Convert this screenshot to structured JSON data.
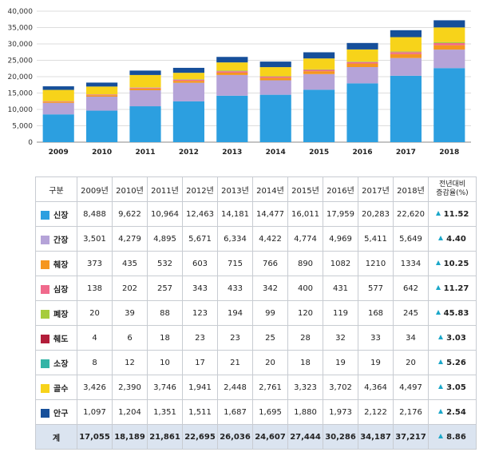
{
  "chart_data": {
    "type": "bar",
    "stacked": true,
    "categories": [
      "2009",
      "2010",
      "2011",
      "2012",
      "2013",
      "2014",
      "2015",
      "2016",
      "2017",
      "2018"
    ],
    "ylim": [
      0,
      40000
    ],
    "yticks": [
      "0",
      "5,000",
      "10,000",
      "15,000",
      "20,000",
      "25,000",
      "30,000",
      "35,000",
      "40,000"
    ],
    "grid": true,
    "series": [
      {
        "name": "신장",
        "color": "#2c9fe0",
        "values": [
          8488,
          9622,
          10964,
          12463,
          14181,
          14477,
          16011,
          17959,
          20283,
          22620
        ],
        "display": [
          "8,488",
          "9,622",
          "10,964",
          "12,463",
          "14,181",
          "14,477",
          "16,011",
          "17,959",
          "20,283",
          "22,620"
        ],
        "change": "11.52"
      },
      {
        "name": "간장",
        "color": "#b5a3d8",
        "values": [
          3501,
          4279,
          4895,
          5671,
          6334,
          4422,
          4774,
          4969,
          5411,
          5649
        ],
        "display": [
          "3,501",
          "4,279",
          "4,895",
          "5,671",
          "6,334",
          "4,422",
          "4,774",
          "4,969",
          "5,411",
          "5,649"
        ],
        "change": "4.40"
      },
      {
        "name": "췌장",
        "color": "#f5961f",
        "values": [
          373,
          435,
          532,
          603,
          715,
          766,
          890,
          1082,
          1210,
          1334
        ],
        "display": [
          "373",
          "435",
          "532",
          "603",
          "715",
          "766",
          "890",
          "1082",
          "1210",
          "1334"
        ],
        "change": "10.25"
      },
      {
        "name": "심장",
        "color": "#f06a8c",
        "values": [
          138,
          202,
          257,
          343,
          433,
          342,
          400,
          431,
          577,
          642
        ],
        "display": [
          "138",
          "202",
          "257",
          "343",
          "433",
          "342",
          "400",
          "431",
          "577",
          "642"
        ],
        "change": "11.27"
      },
      {
        "name": "폐장",
        "color": "#a6cc3c",
        "values": [
          20,
          39,
          88,
          123,
          194,
          99,
          120,
          119,
          168,
          245
        ],
        "display": [
          "20",
          "39",
          "88",
          "123",
          "194",
          "99",
          "120",
          "119",
          "168",
          "245"
        ],
        "change": "45.83"
      },
      {
        "name": "췌도",
        "color": "#b21e3a",
        "values": [
          4,
          6,
          18,
          23,
          23,
          25,
          28,
          32,
          33,
          34
        ],
        "display": [
          "4",
          "6",
          "18",
          "23",
          "23",
          "25",
          "28",
          "32",
          "33",
          "34"
        ],
        "change": "3.03"
      },
      {
        "name": "소장",
        "color": "#33b4a6",
        "values": [
          8,
          12,
          10,
          17,
          21,
          20,
          18,
          19,
          19,
          20
        ],
        "display": [
          "8",
          "12",
          "10",
          "17",
          "21",
          "20",
          "18",
          "19",
          "19",
          "20"
        ],
        "change": "5.26"
      },
      {
        "name": "골수",
        "color": "#f7d31a",
        "values": [
          3426,
          2390,
          3746,
          1941,
          2448,
          2761,
          3323,
          3702,
          4364,
          4497
        ],
        "display": [
          "3,426",
          "2,390",
          "3,746",
          "1,941",
          "2,448",
          "2,761",
          "3,323",
          "3,702",
          "4,364",
          "4,497"
        ],
        "change": "3.05"
      },
      {
        "name": "안구",
        "color": "#164f9a",
        "values": [
          1097,
          1204,
          1351,
          1511,
          1687,
          1695,
          1880,
          1973,
          2122,
          2176
        ],
        "display": [
          "1,097",
          "1,204",
          "1,351",
          "1,511",
          "1,687",
          "1,695",
          "1,880",
          "1,973",
          "2,122",
          "2,176"
        ],
        "change": "2.54"
      }
    ],
    "totals": {
      "name": "계",
      "display": [
        "17,055",
        "18,189",
        "21,861",
        "22,695",
        "26,036",
        "24,607",
        "27,444",
        "30,286",
        "34,187",
        "37,217"
      ],
      "change": "8.86"
    }
  },
  "table": {
    "header_label": "구분",
    "year_headers": [
      "2009년",
      "2010년",
      "2011년",
      "2012년",
      "2013년",
      "2014년",
      "2015년",
      "2016년",
      "2017년",
      "2018년"
    ],
    "change_header_line1": "전년대비",
    "change_header_line2": "증감율(%)"
  },
  "colors": {
    "grid": "#dddddd",
    "axis": "#888888",
    "total_row_bg": "#dbe4f0",
    "arrow": "#1aa7c9"
  }
}
